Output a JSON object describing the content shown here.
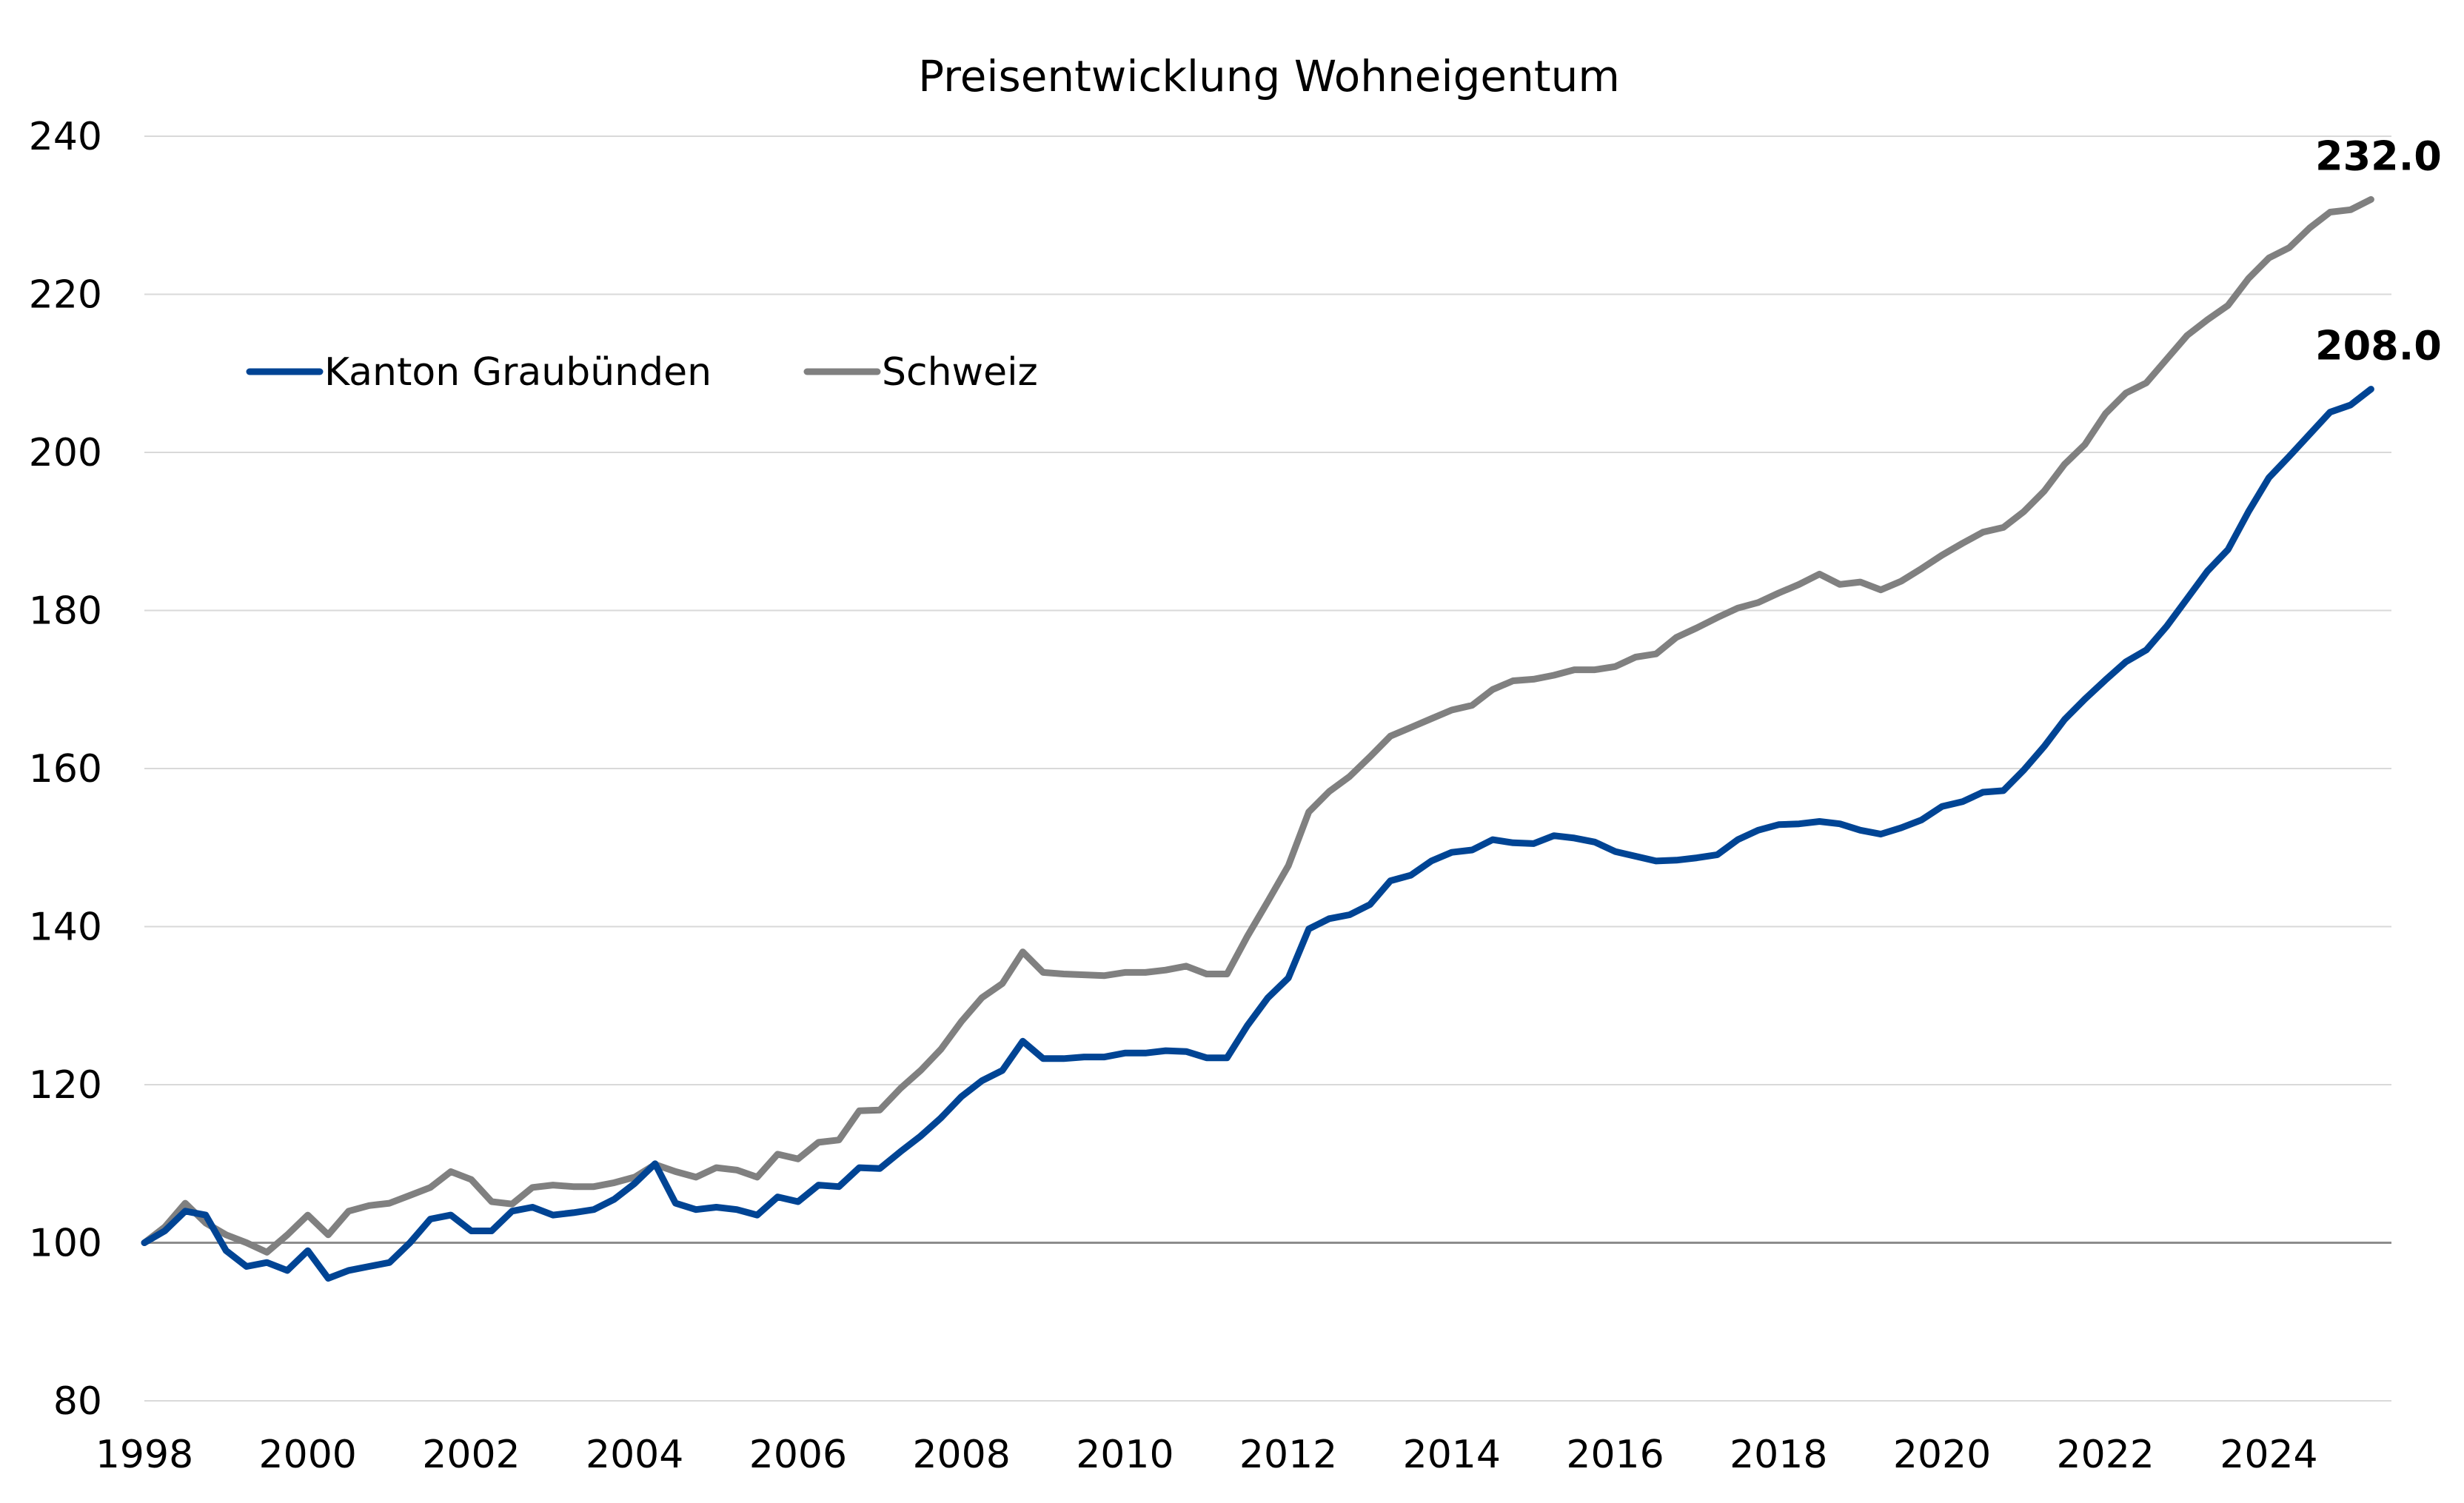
{
  "chart_data": {
    "type": "line",
    "title": "Preisentwicklung Wohneigentum",
    "xlabel": "",
    "ylabel": "",
    "xlim": [
      1998,
      2025.5
    ],
    "ylim": [
      80,
      240
    ],
    "x_ticks": [
      "1998",
      "2000",
      "2002",
      "2004",
      "2006",
      "2008",
      "2010",
      "2012",
      "2014",
      "2016",
      "2018",
      "2020",
      "2022",
      "2024"
    ],
    "y_ticks": [
      "80",
      "100",
      "120",
      "140",
      "160",
      "180",
      "200",
      "220",
      "240"
    ],
    "grid": true,
    "legend": "upper-left",
    "x": [
      1998.0,
      1998.25,
      1998.5,
      1998.75,
      1999.0,
      1999.25,
      1999.5,
      1999.75,
      2000.0,
      2000.25,
      2000.5,
      2000.75,
      2001.0,
      2001.25,
      2001.5,
      2001.75,
      2002.0,
      2002.25,
      2002.5,
      2002.75,
      2003.0,
      2003.25,
      2003.5,
      2003.75,
      2004.0,
      2004.25,
      2004.5,
      2004.75,
      2005.0,
      2005.25,
      2005.5,
      2005.75,
      2006.0,
      2006.25,
      2006.5,
      2006.75,
      2007.0,
      2007.25,
      2007.5,
      2007.75,
      2008.0,
      2008.25,
      2008.5,
      2008.75,
      2009.0,
      2009.25,
      2009.5,
      2009.75,
      2010.0,
      2010.25,
      2010.5,
      2010.75,
      2011.0,
      2011.25,
      2011.5,
      2011.75,
      2012.0,
      2012.25,
      2012.5,
      2012.75,
      2013.0,
      2013.25,
      2013.5,
      2013.75,
      2014.0,
      2014.25,
      2014.5,
      2014.75,
      2015.0,
      2015.25,
      2015.5,
      2015.75,
      2016.0,
      2016.25,
      2016.5,
      2016.75,
      2017.0,
      2017.25,
      2017.5,
      2017.75,
      2018.0,
      2018.25,
      2018.5,
      2018.75,
      2019.0,
      2019.25,
      2019.5,
      2019.75,
      2020.0,
      2020.25,
      2020.5,
      2020.75,
      2021.0,
      2021.25,
      2021.5,
      2021.75,
      2022.0,
      2022.25,
      2022.5,
      2022.75,
      2023.0,
      2023.25,
      2023.5,
      2023.75,
      2024.0,
      2024.25,
      2024.5,
      2024.75,
      2025.0,
      2025.25
    ],
    "series": [
      {
        "name": "Kanton Graubünden",
        "color": "#004494",
        "values": [
          100,
          101.5,
          104,
          103.5,
          99,
          97,
          97.5,
          96.5,
          99,
          95.5,
          96.5,
          97,
          97.5,
          100,
          103,
          103.5,
          101.5,
          101.5,
          104,
          104.5,
          103.5,
          103.8,
          104.2,
          105.5,
          107.5,
          110,
          105,
          104.2,
          104.5,
          104.2,
          103.5,
          105.8,
          105.2,
          107.3,
          107.1,
          109.5,
          109.4,
          111.5,
          113.5,
          115.8,
          118.5,
          120.5,
          121.8,
          125.5,
          123.3,
          123.3,
          123.5,
          123.5,
          124,
          124,
          124.3,
          124.2,
          123.4,
          123.4,
          127.5,
          131,
          133.5,
          139.7,
          141,
          141.5,
          142.8,
          145.8,
          146.5,
          148.3,
          149.4,
          149.7,
          151,
          150.6,
          150.5,
          151.5,
          151.2,
          150.7,
          149.5,
          148.9,
          148.3,
          148.4,
          148.7,
          149.1,
          151,
          152.2,
          152.9,
          153,
          153.3,
          153,
          152.2,
          151.7,
          152.5,
          153.5,
          155.2,
          155.8,
          157,
          157.2,
          159.8,
          162.8,
          166.2,
          168.8,
          171.2,
          173.5,
          175,
          178,
          181.5,
          185,
          187.7,
          192.5,
          196.8,
          199.5,
          202.3,
          205.1,
          206,
          208
        ]
      },
      {
        "name": "Schweiz",
        "color": "#808080",
        "values": [
          100,
          102,
          105,
          102.5,
          101,
          100,
          98.8,
          101,
          103.5,
          101,
          104,
          104.7,
          105,
          106,
          107,
          109,
          108,
          105.2,
          104.9,
          107,
          107.3,
          107.1,
          107.1,
          107.6,
          108.3,
          109.9,
          109,
          108.3,
          109.5,
          109.2,
          108.3,
          111.2,
          110.6,
          112.7,
          113,
          116.7,
          116.8,
          119.5,
          121.8,
          124.5,
          128,
          131,
          132.8,
          136.8,
          134.2,
          134,
          133.9,
          133.8,
          134.2,
          134.2,
          134.5,
          135,
          134,
          134,
          138.8,
          143.2,
          147.7,
          154.5,
          157.1,
          159,
          161.5,
          164.1,
          165.2,
          166.3,
          167.4,
          168,
          170,
          171.1,
          171.3,
          171.8,
          172.5,
          172.5,
          172.9,
          174.1,
          174.5,
          176.6,
          177.8,
          179.1,
          180.3,
          181,
          182.2,
          183.3,
          184.6,
          183.3,
          183.6,
          182.6,
          183.7,
          185.3,
          187,
          188.5,
          189.9,
          190.5,
          192.5,
          195.1,
          198.5,
          201,
          204.9,
          207.5,
          208.8,
          211.8,
          214.8,
          216.8,
          218.6,
          222,
          224.6,
          225.9,
          228.4,
          230.4,
          230.7,
          232
        ]
      }
    ],
    "end_labels": [
      "232.0",
      "208.0"
    ]
  }
}
